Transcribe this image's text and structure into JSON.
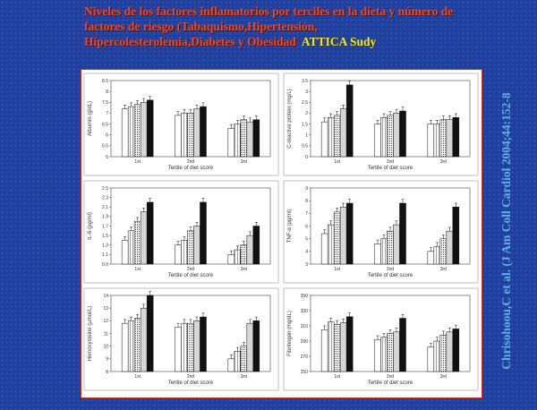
{
  "slide": {
    "title": "Niveles de los factores inflamatorios por terciles en la dieta y número de factores de riesgo (Tabaquismo,Hipertensión, Hipercolesterolemia,Diabetes y Obesidad",
    "study": "ATTICA Sudy",
    "citation": "Chrisohoou,C et al. (J Am Coll Cardiol 2004;44:152-8",
    "background_color": "#1f3f9e",
    "title_color": "#e84a2a",
    "study_color": "#f2e82a",
    "citation_color": "#5fb0e8"
  },
  "chart_data": [
    {
      "type": "bar",
      "ylabel": "Albumin (g/dL)",
      "xlabel": "Tertile of diet score",
      "categories": [
        "1st",
        "2nd",
        "3rd"
      ],
      "yticks": [
        "5",
        "5.5",
        "6",
        "6.5",
        "7",
        "7.5",
        "8",
        "8.5"
      ],
      "ylim": [
        5,
        8.5
      ],
      "series_styles": [
        "white",
        "hatch",
        "dots",
        "light-gray",
        "black"
      ],
      "series": [
        {
          "values": [
            7.2,
            6.9,
            6.3
          ]
        },
        {
          "values": [
            7.3,
            7.0,
            6.5
          ]
        },
        {
          "values": [
            7.4,
            7.0,
            6.7
          ]
        },
        {
          "values": [
            7.5,
            7.2,
            6.6
          ]
        },
        {
          "values": [
            7.6,
            7.3,
            6.7
          ]
        }
      ]
    },
    {
      "type": "bar",
      "ylabel": "C-reactive protein (mg/L)",
      "xlabel": "Tertile of diet score",
      "categories": [
        "1st",
        "2nd",
        "3rd"
      ],
      "yticks": [
        "0",
        "0.5",
        "1",
        "1.5",
        "2",
        "2.5",
        "3",
        "3.5"
      ],
      "ylim": [
        0,
        3.5
      ],
      "series_styles": [
        "white",
        "hatch",
        "dots",
        "light-gray",
        "black"
      ],
      "series": [
        {
          "values": [
            1.6,
            1.5,
            1.5
          ]
        },
        {
          "values": [
            1.8,
            1.8,
            1.5
          ]
        },
        {
          "values": [
            1.9,
            1.9,
            1.7
          ]
        },
        {
          "values": [
            2.2,
            2.0,
            1.7
          ]
        },
        {
          "values": [
            3.3,
            2.1,
            1.8
          ]
        }
      ]
    },
    {
      "type": "bar",
      "ylabel": "IL-6 (pg/ml)",
      "xlabel": "Tertile of diet score",
      "categories": [
        "1st",
        "2nd",
        "3rd"
      ],
      "yticks": [
        "0.9",
        "1.1",
        "1.3",
        "1.5",
        "1.7",
        "1.9",
        "2.1",
        "2.3",
        "2.5"
      ],
      "ylim": [
        0.9,
        2.5
      ],
      "series_styles": [
        "white",
        "hatch",
        "dots",
        "light-gray",
        "black"
      ],
      "series": [
        {
          "values": [
            1.4,
            1.3,
            1.1
          ]
        },
        {
          "values": [
            1.6,
            1.4,
            1.2
          ]
        },
        {
          "values": [
            1.8,
            1.6,
            1.3
          ]
        },
        {
          "values": [
            2.0,
            1.7,
            1.5
          ]
        },
        {
          "values": [
            2.2,
            2.2,
            1.7
          ]
        }
      ]
    },
    {
      "type": "bar",
      "ylabel": "TNF-α (pg/ml)",
      "xlabel": "Tertile of diet score",
      "categories": [
        "1st",
        "2nd",
        "3rd"
      ],
      "yticks": [
        "3",
        "4",
        "5",
        "6",
        "7",
        "8",
        "9"
      ],
      "ylim": [
        3,
        9
      ],
      "series_styles": [
        "white",
        "hatch",
        "dots",
        "light-gray",
        "black"
      ],
      "series": [
        {
          "values": [
            5.4,
            4.6,
            4.0
          ]
        },
        {
          "values": [
            6.1,
            5.0,
            4.4
          ]
        },
        {
          "values": [
            7.1,
            5.6,
            5.0
          ]
        },
        {
          "values": [
            7.5,
            6.1,
            5.6
          ]
        },
        {
          "values": [
            7.8,
            7.8,
            7.5
          ]
        }
      ]
    },
    {
      "type": "bar",
      "ylabel": "Homocysteine (μmol/L)",
      "xlabel": "Tertile of diet score",
      "categories": [
        "1st",
        "2nd",
        "3rd"
      ],
      "yticks": [
        "8",
        "9",
        "10",
        "11",
        "12",
        "13",
        "14"
      ],
      "ylim": [
        8,
        14
      ],
      "series_styles": [
        "white",
        "hatch",
        "dots",
        "light-gray",
        "black"
      ],
      "series": [
        {
          "values": [
            11.8,
            11.5,
            9.0
          ]
        },
        {
          "values": [
            12.0,
            11.8,
            9.6
          ]
        },
        {
          "values": [
            12.2,
            11.8,
            10.0
          ]
        },
        {
          "values": [
            13.0,
            12.0,
            11.8
          ]
        },
        {
          "values": [
            14.0,
            12.3,
            12.0
          ]
        }
      ]
    },
    {
      "type": "bar",
      "ylabel": "Fibrinogen (mg/dL)",
      "xlabel": "Tertile of diet score",
      "categories": [
        "1st",
        "2nd",
        "3rd"
      ],
      "yticks": [
        "250",
        "270",
        "290",
        "310",
        "330",
        "350"
      ],
      "ylim": [
        250,
        350
      ],
      "series_styles": [
        "white",
        "hatch",
        "dots",
        "light-gray",
        "black"
      ],
      "series": [
        {
          "values": [
            305,
            292,
            282
          ]
        },
        {
          "values": [
            315,
            295,
            290
          ]
        },
        {
          "values": [
            312,
            300,
            298
          ]
        },
        {
          "values": [
            314,
            302,
            302
          ]
        },
        {
          "values": [
            322,
            320,
            306
          ]
        }
      ]
    }
  ]
}
